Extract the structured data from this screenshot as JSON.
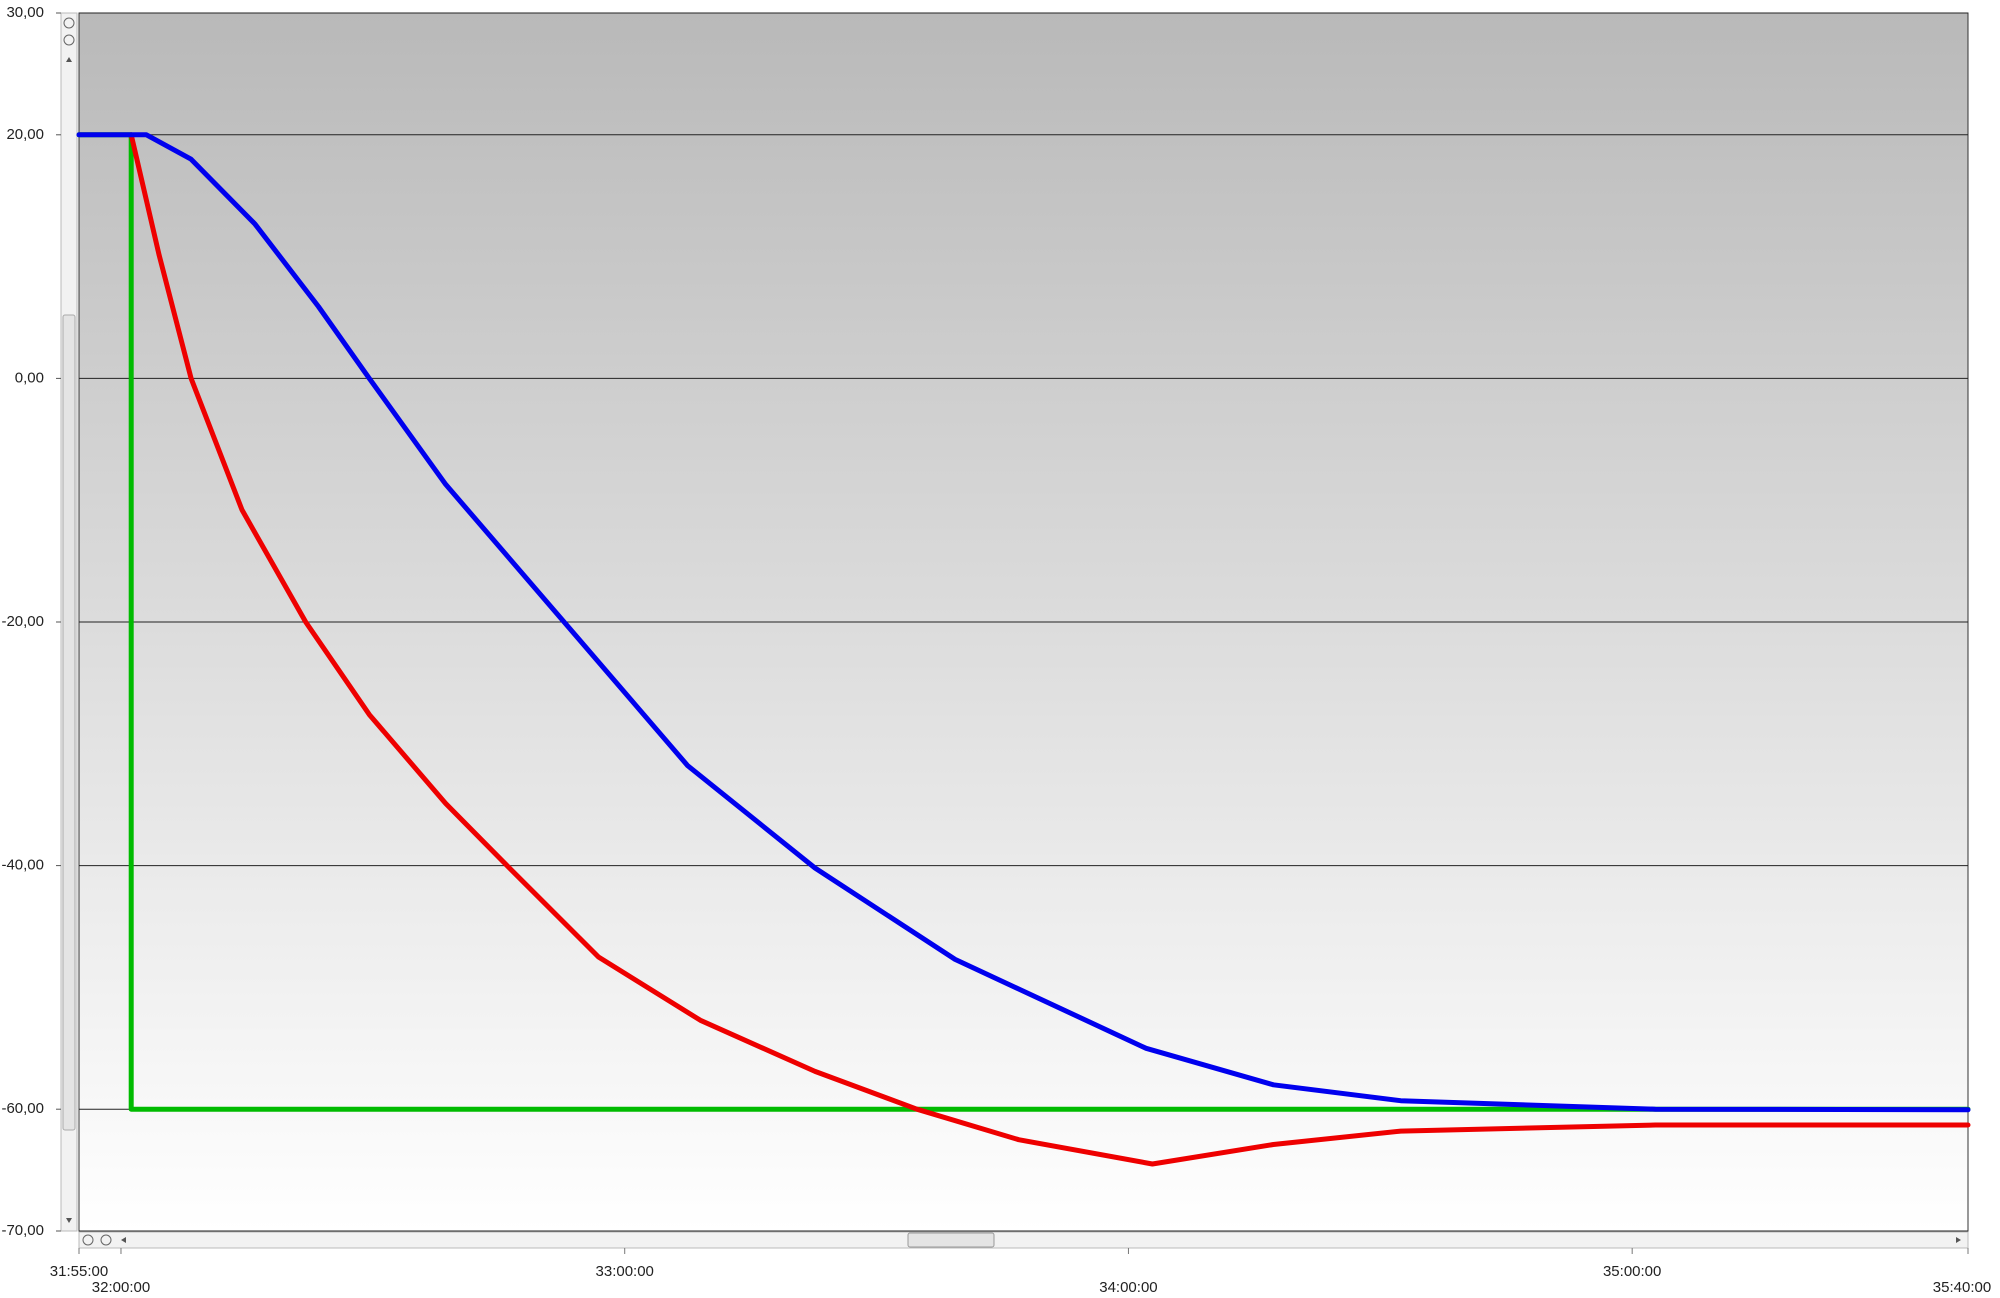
{
  "chart_data": {
    "type": "line",
    "xlim": [
      114900,
      128400
    ],
    "xticks": [
      {
        "value": 114900,
        "label": "31:55:00"
      },
      {
        "value": 115200,
        "label": "32:00:00"
      },
      {
        "value": 118800,
        "label": "33:00:00"
      },
      {
        "value": 122400,
        "label": "34:00:00"
      },
      {
        "value": 126000,
        "label": "35:00:00"
      },
      {
        "value": 128400,
        "label": "35:40:00"
      }
    ],
    "ylim": [
      -70,
      30
    ],
    "yticks": [
      {
        "value": 30,
        "label": "30,00"
      },
      {
        "value": 20,
        "label": "20,00"
      },
      {
        "value": 0,
        "label": "0,00"
      },
      {
        "value": -20,
        "label": "-20,00"
      },
      {
        "value": -40,
        "label": "-40,00"
      },
      {
        "value": -60,
        "label": "-60,00"
      },
      {
        "value": -70,
        "label": "-70,00"
      }
    ],
    "grid": true,
    "series": [
      {
        "color": "#00bb00",
        "x": [
          114900,
          115273,
          115273,
          128400
        ],
        "values": [
          20,
          20,
          -60,
          -60
        ]
      },
      {
        "color": "#ee0000",
        "x": [
          115273,
          115473,
          115701,
          116065,
          116520,
          116975,
          117521,
          117976,
          118613,
          119341,
          120160,
          120888,
          121616,
          122571,
          123436,
          124346,
          126166,
          128400
        ],
        "values": [
          20,
          10.1,
          0,
          -10.8,
          -20,
          -27.6,
          -34.9,
          -40.2,
          -47.5,
          -52.7,
          -56.9,
          -60,
          -62.5,
          -64.5,
          -62.9,
          -61.8,
          -61.3,
          -61.3
        ]
      },
      {
        "color": "#0000ee",
        "x": [
          114900,
          115382,
          115701,
          116156,
          116611,
          116975,
          117521,
          118367,
          119250,
          120160,
          121161,
          122526,
          123436,
          124346,
          126166,
          128400
        ],
        "values": [
          20,
          20,
          18,
          12.7,
          5.9,
          0,
          -8.7,
          -20,
          -31.8,
          -40.2,
          -47.7,
          -55,
          -58,
          -59.3,
          -60,
          -60.05
        ]
      }
    ]
  }
}
